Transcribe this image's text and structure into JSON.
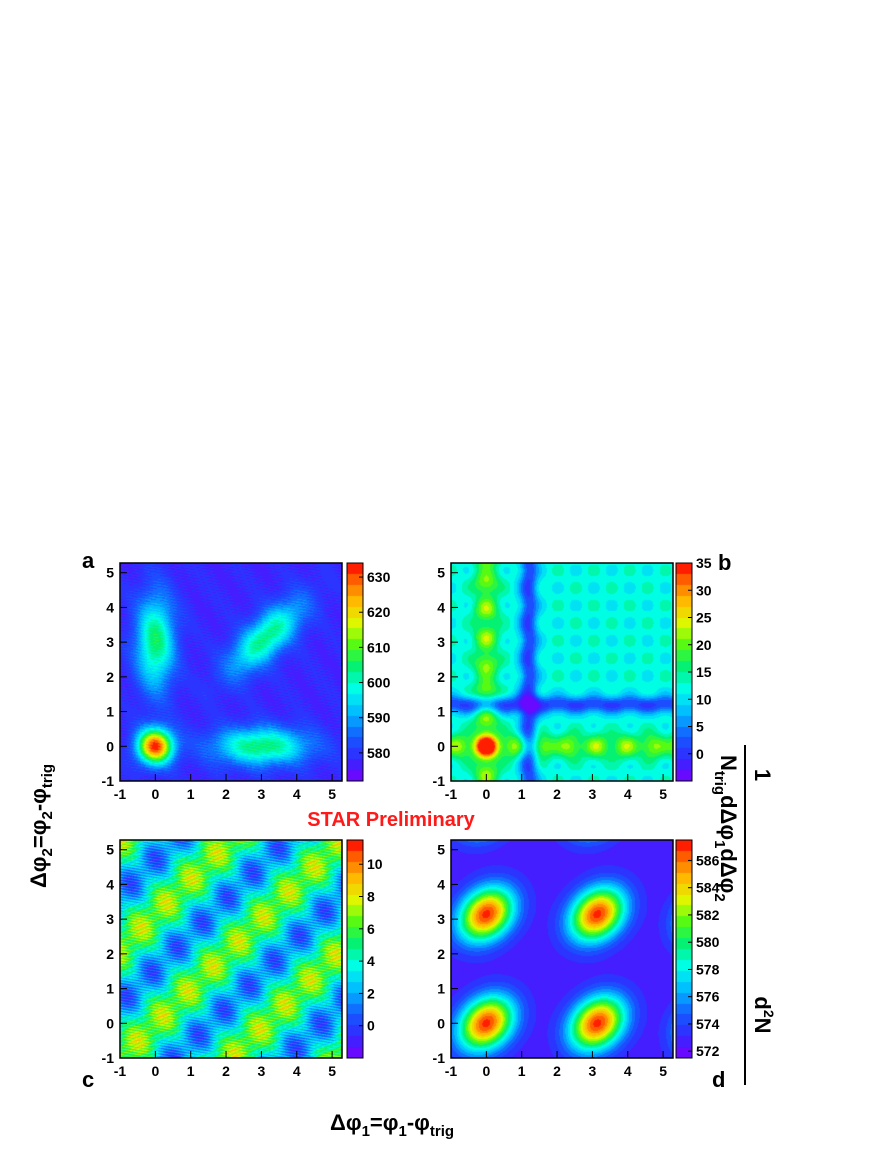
{
  "watermark": "STAR Preliminary",
  "watermark_color": "#ff1a1a",
  "xlabel": {
    "prefix": "Δφ",
    "sub1": "1",
    "mid": "=φ",
    "sub2": "1",
    "dash": "-φ",
    "sub3": "trig"
  },
  "ylabel": {
    "prefix": "Δφ",
    "sub1": "2",
    "mid": "=φ",
    "sub2": "2",
    "dash": "-φ",
    "sub3": "trig"
  },
  "zlabel": {
    "num": "1",
    "num2_pre": "d",
    "num2_sup": "2",
    "num2_post": "N",
    "den_pre": "N",
    "den_sub1": "trig",
    "den_mid": "dΔφ",
    "den_sub2": "1",
    "den_mid2": "dΔφ",
    "den_sub3": "2"
  },
  "chart_data": [
    {
      "panel": "a",
      "type": "heatmap",
      "xlim": [
        -1,
        5.28
      ],
      "ylim": [
        -1,
        5.28
      ],
      "xticks": [
        "-1",
        "0",
        "1",
        "2",
        "3",
        "4",
        "5"
      ],
      "yticks": [
        "-1",
        "0",
        "1",
        "2",
        "3",
        "4",
        "5"
      ],
      "zlim": [
        572,
        634
      ],
      "colorbar_ticks": [
        "580",
        "590",
        "600",
        "610",
        "620",
        "630"
      ],
      "features": [
        {
          "shape": "peak",
          "x": 0,
          "y": 0,
          "z": 632
        },
        {
          "shape": "ridge",
          "x": 0,
          "y": 3.14,
          "z": 605
        },
        {
          "shape": "ridge",
          "x": 3.14,
          "y": 0,
          "z": 605
        },
        {
          "shape": "diagonal-ridge",
          "x": 3.14,
          "y": 3.14,
          "z": 604
        },
        {
          "shape": "background",
          "z": 578
        }
      ]
    },
    {
      "panel": "b",
      "type": "heatmap",
      "xlim": [
        -1,
        5.28
      ],
      "ylim": [
        -1,
        5.28
      ],
      "xticks": [
        "-1",
        "0",
        "1",
        "2",
        "3",
        "4",
        "5"
      ],
      "yticks": [
        "-1",
        "0",
        "1",
        "2",
        "3",
        "4",
        "5"
      ],
      "zlim": [
        -5,
        35
      ],
      "colorbar_ticks": [
        "0",
        "5",
        "10",
        "15",
        "20",
        "25",
        "30",
        "35"
      ],
      "features": [
        {
          "shape": "peak",
          "x": 0,
          "y": 0,
          "z": 34
        },
        {
          "shape": "band-vertical",
          "x": 0,
          "z": 20
        },
        {
          "shape": "band-horizontal",
          "y": 0,
          "z": 20
        },
        {
          "shape": "plateau",
          "x": 3.14,
          "y": 3.14,
          "z": 12
        },
        {
          "shape": "minimum-band",
          "x": 1.2,
          "z": 0
        }
      ]
    },
    {
      "panel": "c",
      "type": "heatmap",
      "xlim": [
        -1,
        5.28
      ],
      "ylim": [
        -1,
        5.28
      ],
      "xticks": [
        "-1",
        "0",
        "1",
        "2",
        "3",
        "4",
        "5"
      ],
      "yticks": [
        "-1",
        "0",
        "1",
        "2",
        "3",
        "4",
        "5"
      ],
      "zlim": [
        -2,
        11.5
      ],
      "colorbar_ticks": [
        "0",
        "2",
        "4",
        "6",
        "8",
        "10"
      ],
      "features": [
        {
          "shape": "diagonal-band",
          "offset": 0,
          "z": 6
        },
        {
          "shape": "diagonal-band",
          "offset": 3.14,
          "z": 5
        },
        {
          "shape": "diagonal-band",
          "offset": -3.14,
          "z": 5
        },
        {
          "shape": "diagonal-valley",
          "offset": 1.57,
          "z": 1
        }
      ]
    },
    {
      "panel": "d",
      "type": "heatmap",
      "xlim": [
        -1,
        5.28
      ],
      "ylim": [
        -1,
        5.28
      ],
      "xticks": [
        "-1",
        "0",
        "1",
        "2",
        "3",
        "4",
        "5"
      ],
      "yticks": [
        "-1",
        "0",
        "1",
        "2",
        "3",
        "4",
        "5"
      ],
      "zlim": [
        571.5,
        587.5
      ],
      "colorbar_ticks": [
        "572",
        "574",
        "576",
        "578",
        "580",
        "582",
        "584",
        "586"
      ],
      "features": [
        {
          "shape": "peak",
          "x": 0,
          "y": 0,
          "z": 587
        },
        {
          "shape": "peak",
          "x": 3.14,
          "y": 0,
          "z": 587
        },
        {
          "shape": "peak",
          "x": 0,
          "y": 3.14,
          "z": 587
        },
        {
          "shape": "peak",
          "x": 3.14,
          "y": 3.14,
          "z": 587
        },
        {
          "shape": "background",
          "z": 572.5
        }
      ]
    }
  ]
}
